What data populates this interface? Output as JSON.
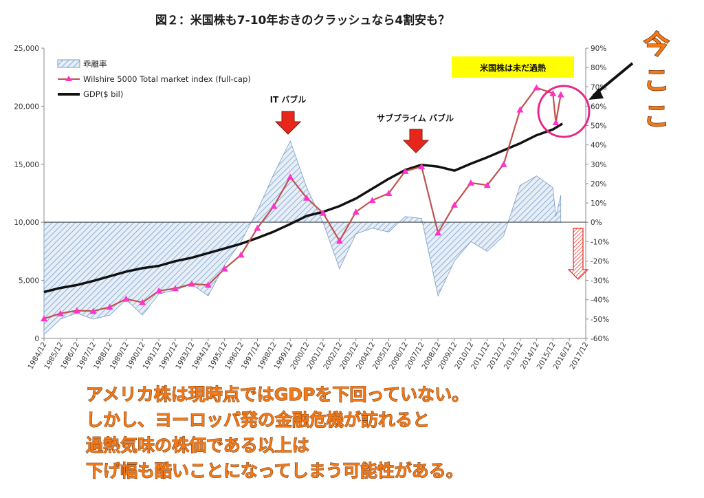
{
  "chart_data": {
    "type": "line",
    "title": "図２：米国株も7-10年おきのクラッシュなら4割安も？",
    "x_categories": [
      "1984/12",
      "1985/12",
      "1986/12",
      "1987/12",
      "1988/12",
      "1989/12",
      "1990/12",
      "1991/12",
      "1992/12",
      "1993/12",
      "1994/12",
      "1995/12",
      "1996/12",
      "1997/12",
      "1998/12",
      "1999/12",
      "2000/12",
      "2001/12",
      "2002/12",
      "2003/12",
      "2004/12",
      "2005/12",
      "2006/12",
      "2007/12",
      "2008/12",
      "2009/12",
      "2010/12",
      "2011/12",
      "2012/12",
      "2013/12",
      "2014/12",
      "2015/12",
      "2016/12",
      "2017/12"
    ],
    "y_left": {
      "ticks": [
        "0",
        "5,000",
        "10,000",
        "15,000",
        "20,000",
        "25,000"
      ],
      "range": [
        0,
        25000
      ]
    },
    "y_right": {
      "ticks": [
        "-60%",
        "-50%",
        "-40%",
        "-30%",
        "-20%",
        "-10%",
        "0%",
        "10%",
        "20%",
        "30%",
        "40%",
        "50%",
        "60%",
        "70%",
        "80%",
        "90%"
      ],
      "range": [
        -60,
        90
      ]
    },
    "series": [
      {
        "name": "乖離率",
        "kind": "area",
        "axis": "right",
        "color": "#8fb4dc",
        "points": [
          [
            1984.92,
            -58
          ],
          [
            1985.92,
            -50
          ],
          [
            1986.92,
            -47
          ],
          [
            1987.92,
            -50
          ],
          [
            1988.92,
            -48
          ],
          [
            1989.92,
            -40
          ],
          [
            1990.92,
            -48
          ],
          [
            1991.92,
            -37
          ],
          [
            1992.92,
            -35
          ],
          [
            1993.92,
            -32
          ],
          [
            1994.92,
            -38
          ],
          [
            1995.92,
            -22
          ],
          [
            1996.92,
            -10
          ],
          [
            1997.92,
            6
          ],
          [
            1998.92,
            25
          ],
          [
            1999.92,
            42
          ],
          [
            2000.92,
            18
          ],
          [
            2001.92,
            0
          ],
          [
            2002.92,
            -24
          ],
          [
            2003.92,
            -6
          ],
          [
            2004.92,
            -3
          ],
          [
            2005.92,
            -5
          ],
          [
            2006.92,
            3
          ],
          [
            2007.92,
            2
          ],
          [
            2008.92,
            -38
          ],
          [
            2009.92,
            -20
          ],
          [
            2010.92,
            -10
          ],
          [
            2011.92,
            -15
          ],
          [
            2012.92,
            -7
          ],
          [
            2013.92,
            19
          ],
          [
            2014.92,
            24
          ],
          [
            2015.92,
            18
          ],
          [
            2016.1,
            3
          ],
          [
            2016.4,
            14
          ]
        ]
      },
      {
        "name": "Wilshire 5000 Total market index (full-cap)",
        "kind": "line",
        "axis": "left",
        "color": "#c0504d",
        "marker_color": "#ff33cc",
        "points": [
          [
            1984.92,
            1700
          ],
          [
            1985.92,
            2150
          ],
          [
            1986.92,
            2400
          ],
          [
            1987.92,
            2350
          ],
          [
            1988.92,
            2700
          ],
          [
            1989.92,
            3400
          ],
          [
            1990.92,
            3100
          ],
          [
            1991.92,
            4100
          ],
          [
            1992.92,
            4300
          ],
          [
            1993.92,
            4700
          ],
          [
            1994.92,
            4600
          ],
          [
            1995.92,
            6000
          ],
          [
            1996.92,
            7200
          ],
          [
            1997.92,
            9500
          ],
          [
            1998.92,
            11400
          ],
          [
            1999.92,
            13900
          ],
          [
            2000.92,
            12100
          ],
          [
            2001.92,
            10800
          ],
          [
            2002.92,
            8400
          ],
          [
            2003.92,
            10900
          ],
          [
            2004.92,
            11900
          ],
          [
            2005.92,
            12500
          ],
          [
            2006.92,
            14400
          ],
          [
            2007.92,
            14800
          ],
          [
            2008.92,
            9100
          ],
          [
            2009.92,
            11500
          ],
          [
            2010.92,
            13400
          ],
          [
            2011.92,
            13200
          ],
          [
            2012.92,
            15000
          ],
          [
            2013.92,
            19700
          ],
          [
            2014.92,
            21600
          ],
          [
            2015.92,
            21100
          ],
          [
            2016.1,
            18600
          ],
          [
            2016.4,
            21000
          ]
        ]
      },
      {
        "name": "GDP($ bil)",
        "kind": "line",
        "axis": "left",
        "color": "#111111",
        "points": [
          [
            1984.92,
            4000
          ],
          [
            1985.92,
            4350
          ],
          [
            1986.92,
            4600
          ],
          [
            1987.92,
            4950
          ],
          [
            1988.92,
            5350
          ],
          [
            1989.92,
            5750
          ],
          [
            1990.92,
            6050
          ],
          [
            1991.92,
            6250
          ],
          [
            1992.92,
            6650
          ],
          [
            1993.92,
            6950
          ],
          [
            1994.92,
            7350
          ],
          [
            1995.92,
            7750
          ],
          [
            1996.92,
            8150
          ],
          [
            1997.92,
            8650
          ],
          [
            1998.92,
            9200
          ],
          [
            1999.92,
            9850
          ],
          [
            2000.92,
            10550
          ],
          [
            2001.92,
            10900
          ],
          [
            2002.92,
            11400
          ],
          [
            2003.92,
            12050
          ],
          [
            2004.92,
            12900
          ],
          [
            2005.92,
            13750
          ],
          [
            2006.92,
            14500
          ],
          [
            2007.92,
            14950
          ],
          [
            2008.92,
            14800
          ],
          [
            2009.92,
            14450
          ],
          [
            2010.92,
            15050
          ],
          [
            2011.92,
            15600
          ],
          [
            2012.92,
            16200
          ],
          [
            2013.92,
            16800
          ],
          [
            2014.92,
            17500
          ],
          [
            2015.92,
            18000
          ],
          [
            2016.5,
            18500
          ]
        ]
      }
    ],
    "annotations": {
      "it_bubble": "IT バブル",
      "subprime_bubble": "サブプライム バブル",
      "overheated_box": "米国株は未だ過熱",
      "now_here": "今ここ"
    },
    "legend_position": "top-left",
    "grid": false
  },
  "caption": {
    "line1": "アメリカ株は現時点ではGDPを下回っていない。",
    "line2": "しかし、ヨーロッパ発の金融危機が訪れると",
    "line3": "過熱気味の株価である以上は",
    "line4": "下げ幅も酷いことになってしまう可能性がある。"
  },
  "colors": {
    "area_fill": "#dce8f5",
    "area_stroke": "#7a9cc6",
    "bubble_arrow": "#e8271c",
    "callout_box": "#ffff00",
    "circle": "#e8268a",
    "caption_text": "#f07a1a"
  }
}
